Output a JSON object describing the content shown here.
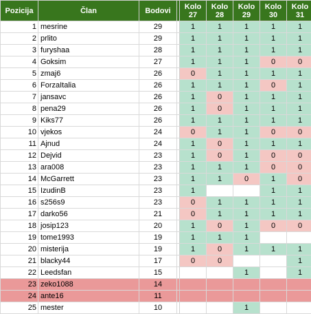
{
  "headers": {
    "position": "Pozicija",
    "member": "Član",
    "points": "Bodovi",
    "rounds": [
      "Kolo 27",
      "Kolo 28",
      "Kolo 29",
      "Kolo 30",
      "Kolo 31"
    ]
  },
  "colors": {
    "header_bg": "#38761d",
    "win": "#b7e1cd",
    "loss": "#f4c7c3",
    "relegated": "#ea9999"
  },
  "rows": [
    {
      "pos": "1",
      "name": "mesrine",
      "pts": "29",
      "r": [
        "1",
        "1",
        "1",
        "1",
        "1"
      ]
    },
    {
      "pos": "2",
      "name": "prlito",
      "pts": "29",
      "r": [
        "1",
        "1",
        "1",
        "1",
        "1"
      ]
    },
    {
      "pos": "3",
      "name": "furyshaa",
      "pts": "28",
      "r": [
        "1",
        "1",
        "1",
        "1",
        "1"
      ]
    },
    {
      "pos": "4",
      "name": "Goksim",
      "pts": "27",
      "r": [
        "1",
        "1",
        "1",
        "0",
        "0"
      ]
    },
    {
      "pos": "5",
      "name": "zmaj6",
      "pts": "26",
      "r": [
        "0",
        "1",
        "1",
        "1",
        "1"
      ]
    },
    {
      "pos": "6",
      "name": "ForzaItalia",
      "pts": "26",
      "r": [
        "1",
        "1",
        "1",
        "0",
        "1"
      ]
    },
    {
      "pos": "7",
      "name": "jansavc",
      "pts": "26",
      "r": [
        "1",
        "0",
        "1",
        "1",
        "1"
      ]
    },
    {
      "pos": "8",
      "name": "pena29",
      "pts": "26",
      "r": [
        "1",
        "0",
        "1",
        "1",
        "1"
      ]
    },
    {
      "pos": "9",
      "name": "Kiks77",
      "pts": "26",
      "r": [
        "1",
        "1",
        "1",
        "1",
        "1"
      ]
    },
    {
      "pos": "10",
      "name": "vjekos",
      "pts": "24",
      "r": [
        "0",
        "1",
        "1",
        "0",
        "0"
      ]
    },
    {
      "pos": "11",
      "name": "Ajnud",
      "pts": "24",
      "r": [
        "1",
        "0",
        "1",
        "1",
        "1"
      ]
    },
    {
      "pos": "12",
      "name": "Dejvid",
      "pts": "23",
      "r": [
        "1",
        "0",
        "1",
        "0",
        "0"
      ]
    },
    {
      "pos": "13",
      "name": "ara008",
      "pts": "23",
      "r": [
        "1",
        "1",
        "1",
        "0",
        "0"
      ]
    },
    {
      "pos": "14",
      "name": "McGarrett",
      "pts": "23",
      "r": [
        "1",
        "1",
        "0",
        "1",
        "0"
      ]
    },
    {
      "pos": "15",
      "name": "IzudinB",
      "pts": "23",
      "r": [
        "1",
        "",
        "",
        "1",
        "1"
      ]
    },
    {
      "pos": "16",
      "name": "s256s9",
      "pts": "23",
      "r": [
        "0",
        "1",
        "1",
        "1",
        "1"
      ]
    },
    {
      "pos": "17",
      "name": "darko56",
      "pts": "21",
      "r": [
        "0",
        "1",
        "1",
        "1",
        "1"
      ]
    },
    {
      "pos": "18",
      "name": "josip123",
      "pts": "20",
      "r": [
        "1",
        "0",
        "1",
        "0",
        "0"
      ]
    },
    {
      "pos": "19",
      "name": "tome1993",
      "pts": "19",
      "r": [
        "1",
        "1",
        "1",
        "",
        ""
      ]
    },
    {
      "pos": "20",
      "name": "misterija",
      "pts": "19",
      "r": [
        "1",
        "0",
        "1",
        "1",
        "1"
      ]
    },
    {
      "pos": "21",
      "name": "blacky44",
      "pts": "17",
      "r": [
        "0",
        "0",
        "",
        "",
        "1"
      ]
    },
    {
      "pos": "22",
      "name": "Leedsfan",
      "pts": "15",
      "r": [
        "",
        "",
        "1",
        "",
        "1"
      ]
    },
    {
      "pos": "23",
      "name": "zeko1088",
      "pts": "14",
      "r": [
        "",
        "",
        "",
        "",
        ""
      ],
      "relegated": true
    },
    {
      "pos": "24",
      "name": "ante16",
      "pts": "11",
      "r": [
        "",
        "",
        "",
        "",
        ""
      ],
      "relegated": true
    },
    {
      "pos": "25",
      "name": "mester",
      "pts": "10",
      "r": [
        "",
        "",
        "1",
        "",
        ""
      ]
    }
  ]
}
